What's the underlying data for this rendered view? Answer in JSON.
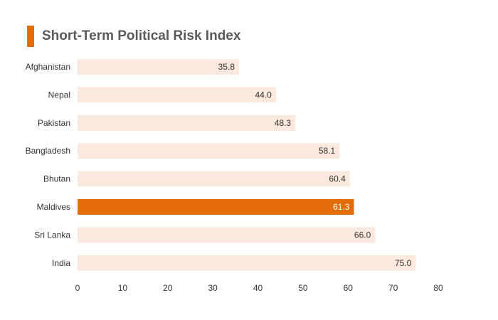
{
  "title": "Short-Term Political Risk Index",
  "colors": {
    "accent": "#E46C0A",
    "bar_default": "#FCE9DD",
    "bar_highlight": "#E46C0A",
    "label_default": "#333333",
    "label_highlight": "#ffffff",
    "axis_text": "#333333",
    "title_text": "#5a5a5a"
  },
  "chart_data": {
    "type": "bar",
    "orientation": "horizontal",
    "title": "Short-Term Political Risk Index",
    "categories": [
      "Afghanistan",
      "Nepal",
      "Pakistan",
      "Bangladesh",
      "Bhutan",
      "Maldives",
      "Sri Lanka",
      "India"
    ],
    "values": [
      35.8,
      44.0,
      48.3,
      58.1,
      60.4,
      61.3,
      66.0,
      75.0
    ],
    "value_labels": [
      "35.8",
      "44.0",
      "48.3",
      "58.1",
      "60.4",
      "61.3",
      "66.0",
      "75.0"
    ],
    "highlighted_category": "Maldives",
    "xlim": [
      0,
      80
    ],
    "xticks": [
      0,
      10,
      20,
      30,
      40,
      50,
      60,
      70,
      80
    ],
    "xlabel": "",
    "ylabel": "",
    "grid": false,
    "legend": "none"
  }
}
